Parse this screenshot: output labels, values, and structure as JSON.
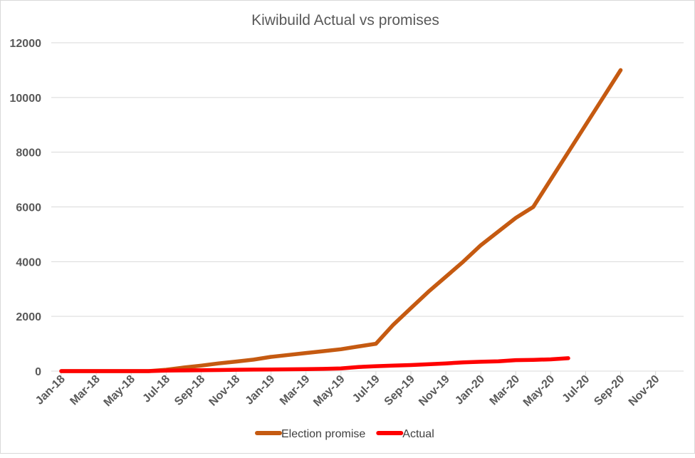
{
  "chart_data": {
    "type": "line",
    "title": "Kiwibuild Actual vs promises",
    "xlabel": "",
    "ylabel": "",
    "ylim": [
      0,
      12000
    ],
    "yticks": [
      "0",
      "2000",
      "4000",
      "6000",
      "8000",
      "10000",
      "12000"
    ],
    "x": [
      "Jan-18",
      "Feb-18",
      "Mar-18",
      "Apr-18",
      "May-18",
      "Jun-18",
      "Jul-18",
      "Aug-18",
      "Sep-18",
      "Oct-18",
      "Nov-18",
      "Dec-18",
      "Jan-19",
      "Feb-19",
      "Mar-19",
      "Apr-19",
      "May-19",
      "Jun-19",
      "Jul-19",
      "Aug-19",
      "Sep-19",
      "Oct-19",
      "Nov-19",
      "Dec-19",
      "Jan-20",
      "Feb-20",
      "Mar-20",
      "Apr-20",
      "May-20",
      "Jun-20",
      "Jul-20",
      "Aug-20",
      "Sep-20",
      "Oct-20",
      "Nov-20",
      "Dec-20"
    ],
    "xtick_labels": [
      "Jan-18",
      "Mar-18",
      "May-18",
      "Jul-18",
      "Sep-18",
      "Nov-18",
      "Jan-19",
      "Mar-19",
      "May-19",
      "Jul-19",
      "Sep-19",
      "Nov-19",
      "Jan-20",
      "Mar-20",
      "May-20",
      "Jul-20",
      "Sep-20",
      "Nov-20"
    ],
    "grid": true,
    "legend_position": "bottom",
    "series": [
      {
        "name": "Election promise",
        "color": "#c55a11",
        "values": [
          0,
          0,
          0,
          0,
          0,
          0,
          50,
          130,
          200,
          280,
          350,
          420,
          520,
          590,
          660,
          730,
          800,
          900,
          1000,
          1700,
          2300,
          2900,
          3450,
          4000,
          4600,
          5100,
          5600,
          6000,
          7000,
          8000,
          9000,
          10000,
          11000,
          null,
          null,
          null
        ]
      },
      {
        "name": "Actual",
        "color": "#ff0000",
        "values": [
          0,
          0,
          0,
          0,
          0,
          0,
          20,
          25,
          30,
          40,
          50,
          55,
          60,
          65,
          70,
          80,
          100,
          150,
          180,
          200,
          220,
          250,
          280,
          320,
          340,
          360,
          400,
          410,
          430,
          470,
          null,
          null,
          null,
          null,
          null,
          null
        ]
      }
    ]
  }
}
